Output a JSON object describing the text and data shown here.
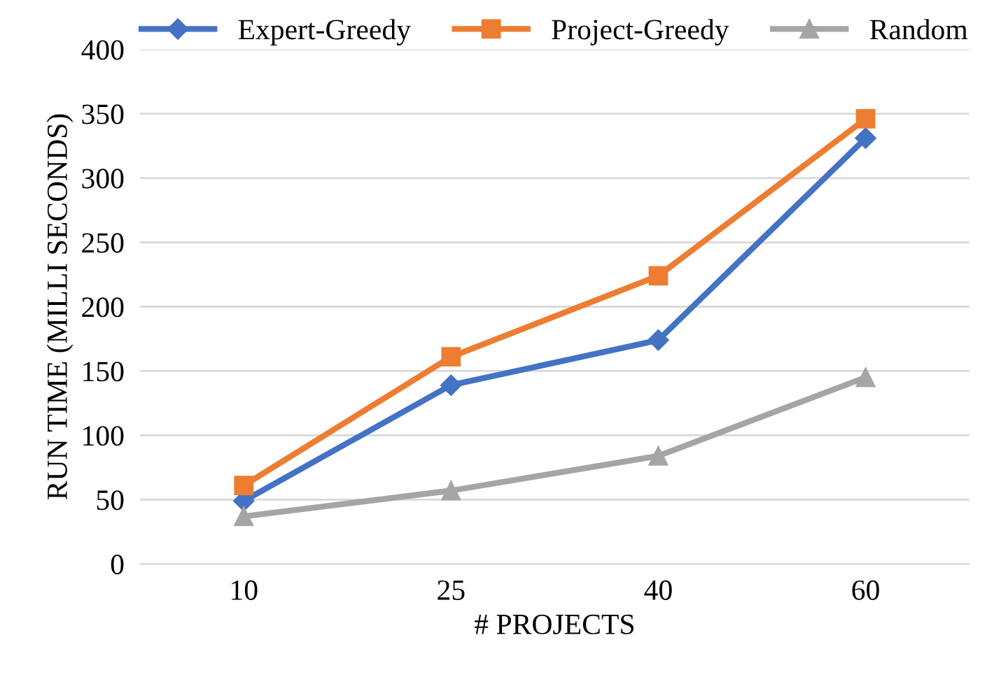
{
  "chart_data": {
    "type": "line",
    "xlabel": "# PROJECTS",
    "ylabel": "RUN TIME (MILLI SECONDS)",
    "categories": [
      "10",
      "25",
      "40",
      "60"
    ],
    "series": [
      {
        "name": "Expert-Greedy",
        "color": "#4472c4",
        "marker": "diamond",
        "values": [
          49,
          139,
          174,
          331
        ]
      },
      {
        "name": "Project-Greedy",
        "color": "#ed7d31",
        "marker": "square",
        "values": [
          61,
          161,
          224,
          346
        ]
      },
      {
        "name": "Random",
        "color": "#a5a5a5",
        "marker": "triangle",
        "values": [
          37,
          57,
          84,
          145
        ]
      }
    ],
    "ylim": [
      0,
      400
    ],
    "yticks": [
      0,
      50,
      100,
      150,
      200,
      250,
      300,
      350,
      400
    ],
    "grid": "y",
    "legend": "top",
    "line_style": "solid"
  }
}
